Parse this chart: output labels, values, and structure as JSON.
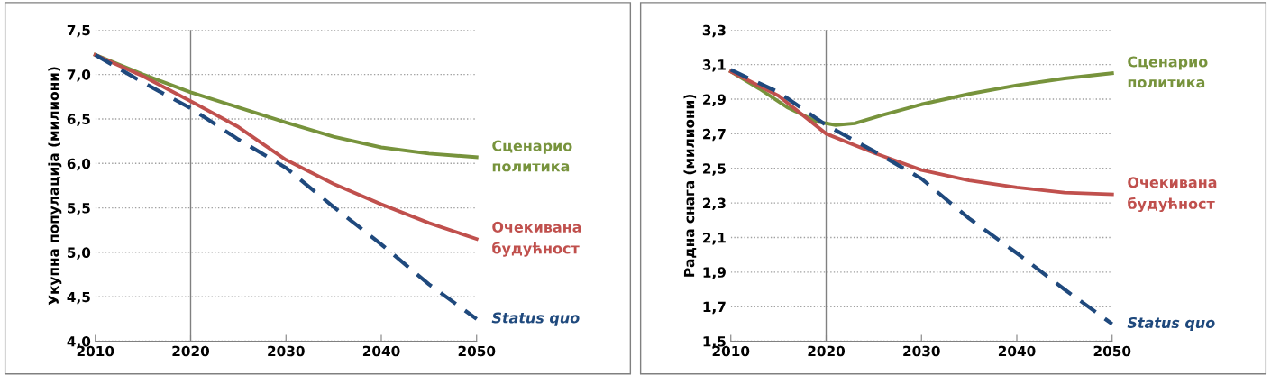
{
  "chart_data": [
    {
      "type": "line",
      "ylabel": "Укупна популација (милиони)",
      "xlim": [
        2010,
        2050
      ],
      "xticks": [
        2010,
        2020,
        2030,
        2040,
        2050
      ],
      "ylim": [
        4.0,
        7.5
      ],
      "yticks": [
        {
          "value": 4.0,
          "label": "4,0"
        },
        {
          "value": 4.5,
          "label": "4,5"
        },
        {
          "value": 5.0,
          "label": "5,0"
        },
        {
          "value": 5.5,
          "label": "5,5"
        },
        {
          "value": 6.0,
          "label": "6,0"
        },
        {
          "value": 6.5,
          "label": "6,5"
        },
        {
          "value": 7.0,
          "label": "7,0"
        },
        {
          "value": 7.5,
          "label": "7,5"
        }
      ],
      "grid": "y",
      "legend": false,
      "marker": "none",
      "ref_lines": [
        {
          "axis": "x",
          "value": 2020,
          "color": "#808080",
          "line_style": "solid"
        }
      ],
      "x": [
        2010,
        2015,
        2020,
        2025,
        2030,
        2035,
        2040,
        2045,
        2050
      ],
      "series": [
        {
          "name": "Сценарио\nполитика",
          "color": "#77933c",
          "line_style": "solid",
          "values": [
            7.22,
            7.0,
            6.8,
            6.63,
            6.46,
            6.3,
            6.18,
            6.11,
            6.07
          ]
        },
        {
          "name": "Очекивана\nбудућност",
          "color": "#c0504d",
          "line_style": "solid",
          "values": [
            7.22,
            6.98,
            6.7,
            6.41,
            6.04,
            5.77,
            5.54,
            5.33,
            5.15
          ]
        },
        {
          "name": "Status quo",
          "color": "#1f497d",
          "line_style": "dashed",
          "values": [
            7.22,
            6.91,
            6.62,
            6.27,
            5.95,
            5.51,
            5.09,
            4.64,
            4.25
          ]
        }
      ]
    },
    {
      "type": "line",
      "ylabel": "Радна снага (милиони)",
      "xlim": [
        2010,
        2050
      ],
      "xticks": [
        2010,
        2020,
        2030,
        2040,
        2050
      ],
      "ylim": [
        1.5,
        3.3
      ],
      "yticks": [
        {
          "value": 1.5,
          "label": "1,5"
        },
        {
          "value": 1.7,
          "label": "1,7"
        },
        {
          "value": 1.9,
          "label": "1,9"
        },
        {
          "value": 2.1,
          "label": "2,1"
        },
        {
          "value": 2.3,
          "label": "2,3"
        },
        {
          "value": 2.5,
          "label": "2,5"
        },
        {
          "value": 2.7,
          "label": "2,7"
        },
        {
          "value": 2.9,
          "label": "2,9"
        },
        {
          "value": 3.1,
          "label": "3,1"
        },
        {
          "value": 3.3,
          "label": "3,3"
        }
      ],
      "grid": "y",
      "legend": false,
      "marker": "none",
      "ref_lines": [
        {
          "axis": "x",
          "value": 2020,
          "color": "#808080",
          "line_style": "solid"
        }
      ],
      "series": [
        {
          "name": "Сценарио\nполитика",
          "color": "#77933c",
          "line_style": "solid",
          "x": [
            2010,
            2013,
            2016,
            2019,
            2021,
            2023,
            2026,
            2030,
            2035,
            2040,
            2045,
            2050
          ],
          "values": [
            3.06,
            2.96,
            2.85,
            2.77,
            2.75,
            2.76,
            2.81,
            2.87,
            2.93,
            2.98,
            3.02,
            3.05
          ]
        },
        {
          "name": "Очекивана\nбудућност",
          "color": "#c0504d",
          "line_style": "solid",
          "x": [
            2010,
            2015,
            2020,
            2025,
            2030,
            2035,
            2040,
            2045,
            2050
          ],
          "values": [
            3.06,
            2.92,
            2.7,
            2.59,
            2.49,
            2.43,
            2.39,
            2.36,
            2.35
          ]
        },
        {
          "name": "Status quo",
          "color": "#1f497d",
          "line_style": "dashed",
          "x": [
            2010,
            2015,
            2020,
            2025,
            2030,
            2035,
            2040,
            2045,
            2050
          ],
          "values": [
            3.07,
            2.94,
            2.75,
            2.6,
            2.44,
            2.21,
            2.01,
            1.8,
            1.6
          ]
        }
      ]
    }
  ]
}
